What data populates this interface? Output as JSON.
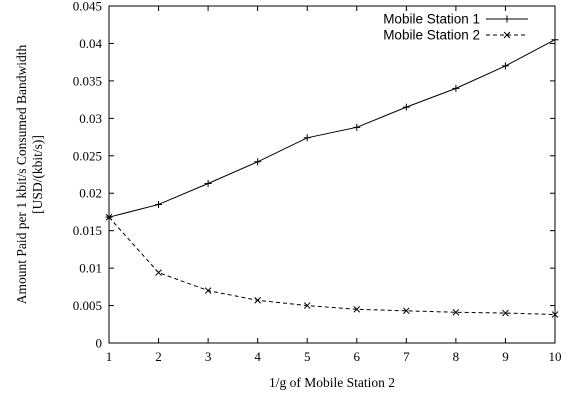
{
  "chart_data": {
    "type": "line",
    "title": "",
    "xlabel": "1/g of Mobile Station 2",
    "ylabel_lines": [
      "Amount Paid per 1 kbit/s Consumed Bandwidth",
      "[USD/(kbit/s)]"
    ],
    "xlim": [
      1,
      10
    ],
    "ylim": [
      0,
      0.045
    ],
    "x_ticks": [
      1,
      2,
      3,
      4,
      5,
      6,
      7,
      8,
      9,
      10
    ],
    "x_tick_labels": [
      "1",
      "2",
      "3",
      "4",
      "5",
      "6",
      "7",
      "8",
      "9",
      "10"
    ],
    "y_ticks": [
      0,
      0.005,
      0.01,
      0.015,
      0.02,
      0.025,
      0.03,
      0.035,
      0.04,
      0.045
    ],
    "y_tick_labels": [
      "0",
      "0.005",
      "0.01",
      "0.015",
      "0.02",
      "0.025",
      "0.03",
      "0.035",
      "0.04",
      "0.045"
    ],
    "grid": false,
    "legend_position": "top-right",
    "x": [
      1,
      2,
      3,
      4,
      5,
      6,
      7,
      8,
      9,
      10
    ],
    "series": [
      {
        "name": "Mobile Station 1",
        "marker": "plus",
        "line_style": "solid",
        "color": "#000000",
        "values": [
          0.0168,
          0.0185,
          0.0213,
          0.0242,
          0.0274,
          0.0288,
          0.0315,
          0.034,
          0.037,
          0.0405
        ]
      },
      {
        "name": "Mobile Station 2",
        "marker": "cross",
        "line_style": "dashed",
        "color": "#000000",
        "values": [
          0.0168,
          0.0094,
          0.007,
          0.0057,
          0.005,
          0.0045,
          0.0043,
          0.0041,
          0.004,
          0.0038
        ]
      }
    ]
  }
}
